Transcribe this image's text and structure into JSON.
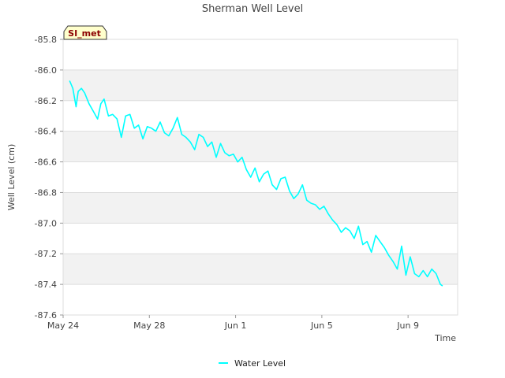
{
  "chart_data": {
    "type": "line",
    "title": "Sherman Well Level",
    "xlabel": "Time",
    "ylabel": "Well Level (cm)",
    "badge": "SI_met",
    "ylim": [
      -87.6,
      -85.8
    ],
    "yticks": [
      -85.8,
      -86.0,
      -86.2,
      -86.4,
      -86.6,
      -86.8,
      -87.0,
      -87.2,
      -87.4,
      -87.6
    ],
    "ytick_labels": [
      "-85.8",
      "-86.0",
      "-86.2",
      "-86.4",
      "-86.6",
      "-86.8",
      "-87.0",
      "-87.2",
      "-87.4",
      "-87.6"
    ],
    "xlim": [
      0,
      18.3
    ],
    "xticks": [
      0,
      4,
      8,
      12,
      16
    ],
    "xtick_labels": [
      "May 24",
      "May 28",
      "Jun 1",
      "Jun 5",
      "Jun 9"
    ],
    "x_units": "days since May 24",
    "grid": "horizontal alternating bands",
    "legend_position": "bottom-center",
    "colors": {
      "series": "#00ffff",
      "band": "#f2f2f2",
      "gridline": "#dddddd",
      "badge_bg": "#ffffcc"
    },
    "series": [
      {
        "name": "Water Level",
        "x": [
          0.3,
          0.45,
          0.6,
          0.7,
          0.85,
          1.0,
          1.2,
          1.4,
          1.6,
          1.75,
          1.9,
          2.1,
          2.3,
          2.5,
          2.7,
          2.9,
          3.1,
          3.3,
          3.5,
          3.7,
          3.9,
          4.1,
          4.3,
          4.5,
          4.7,
          4.9,
          5.1,
          5.3,
          5.5,
          5.7,
          5.9,
          6.1,
          6.3,
          6.5,
          6.7,
          6.9,
          7.1,
          7.3,
          7.5,
          7.7,
          7.9,
          8.1,
          8.3,
          8.5,
          8.7,
          8.9,
          9.1,
          9.3,
          9.5,
          9.7,
          9.9,
          10.1,
          10.3,
          10.5,
          10.7,
          10.9,
          11.1,
          11.3,
          11.5,
          11.7,
          11.9,
          12.1,
          12.3,
          12.5,
          12.7,
          12.9,
          13.1,
          13.3,
          13.5,
          13.7,
          13.9,
          14.1,
          14.3,
          14.5,
          14.7,
          14.9,
          15.1,
          15.3,
          15.5,
          15.7,
          15.9,
          16.1,
          16.3,
          16.5,
          16.7,
          16.9,
          17.1,
          17.3,
          17.5,
          17.6
        ],
        "values": [
          -86.07,
          -86.12,
          -86.24,
          -86.14,
          -86.12,
          -86.15,
          -86.22,
          -86.27,
          -86.32,
          -86.22,
          -86.19,
          -86.3,
          -86.29,
          -86.32,
          -86.44,
          -86.3,
          -86.29,
          -86.38,
          -86.36,
          -86.45,
          -86.37,
          -86.38,
          -86.4,
          -86.34,
          -86.41,
          -86.43,
          -86.38,
          -86.31,
          -86.42,
          -86.44,
          -86.47,
          -86.52,
          -86.42,
          -86.44,
          -86.5,
          -86.47,
          -86.57,
          -86.48,
          -86.54,
          -86.56,
          -86.55,
          -86.6,
          -86.57,
          -86.65,
          -86.7,
          -86.64,
          -86.73,
          -86.68,
          -86.66,
          -86.75,
          -86.78,
          -86.71,
          -86.7,
          -86.79,
          -86.84,
          -86.81,
          -86.75,
          -86.85,
          -86.87,
          -86.88,
          -86.91,
          -86.89,
          -86.94,
          -86.98,
          -87.01,
          -87.06,
          -87.03,
          -87.05,
          -87.1,
          -87.02,
          -87.14,
          -87.12,
          -87.19,
          -87.08,
          -87.12,
          -87.16,
          -87.21,
          -87.25,
          -87.3,
          -87.15,
          -87.34,
          -87.22,
          -87.33,
          -87.35,
          -87.31,
          -87.35,
          -87.3,
          -87.33,
          -87.4,
          -87.41
        ]
      }
    ]
  }
}
